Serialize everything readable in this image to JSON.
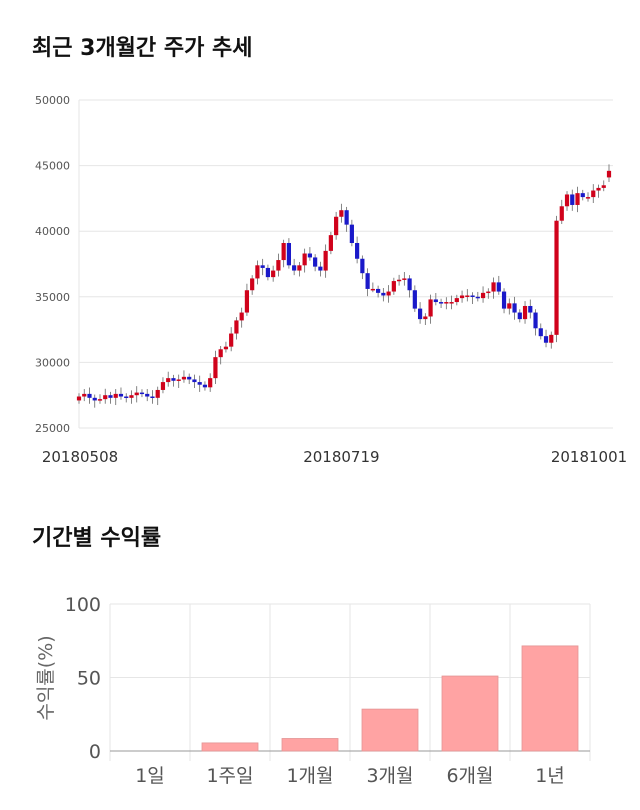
{
  "sections": {
    "price_title": "최근 3개월간 주가 추세",
    "returns_title": "기간별 수익률"
  },
  "colors": {
    "up": "#d0021b",
    "down": "#1a19c9",
    "bar": "#ffa3a3",
    "grid": "#e6e6e6"
  },
  "chart_data": [
    {
      "type": "candlestick",
      "title": "최근 3개월간 주가 추세",
      "ylim": [
        25000,
        50000
      ],
      "y_ticks": [
        "25000",
        "30000",
        "35000",
        "40000",
        "45000",
        "50000"
      ],
      "x_ticks": [
        {
          "label": "20180508",
          "index": 0
        },
        {
          "label": "20180719",
          "index": 50
        },
        {
          "label": "20181001",
          "index": 101
        }
      ],
      "grid": true,
      "closes": [
        27400,
        27600,
        27300,
        27100,
        27200,
        27500,
        27300,
        27600,
        27400,
        27300,
        27500,
        27700,
        27600,
        27400,
        27300,
        27900,
        28500,
        28800,
        28600,
        28700,
        28900,
        28700,
        28500,
        28300,
        28100,
        28800,
        30400,
        31000,
        31200,
        32200,
        33200,
        33800,
        35500,
        36400,
        37400,
        37200,
        36500,
        37000,
        37800,
        39100,
        37400,
        37000,
        37400,
        38300,
        38000,
        37300,
        37000,
        38500,
        39700,
        41100,
        41600,
        40500,
        39100,
        37900,
        36800,
        35600,
        35600,
        35300,
        35100,
        35400,
        36200,
        36300,
        36400,
        35500,
        34100,
        33300,
        33500,
        34800,
        34600,
        34500,
        34600,
        34600,
        34900,
        35100,
        35100,
        35000,
        34900,
        35300,
        35400,
        36100,
        35400,
        34100,
        34500,
        33800,
        33300,
        34300,
        33800,
        32600,
        32000,
        31500,
        32100,
        40800,
        41900,
        42800,
        42000,
        42900,
        42600,
        42600,
        43100,
        43300,
        43500,
        44600
      ]
    },
    {
      "type": "bar",
      "ylabel": "수익률(%)",
      "ylim": [
        0,
        100
      ],
      "y_ticks": [
        "0",
        "50",
        "100"
      ],
      "categories": [
        "1일",
        "1주일",
        "1개월",
        "3개월",
        "6개월",
        "1년"
      ],
      "values": [
        0,
        5.5,
        8.5,
        28.5,
        51,
        71.5
      ],
      "grid": true
    }
  ]
}
